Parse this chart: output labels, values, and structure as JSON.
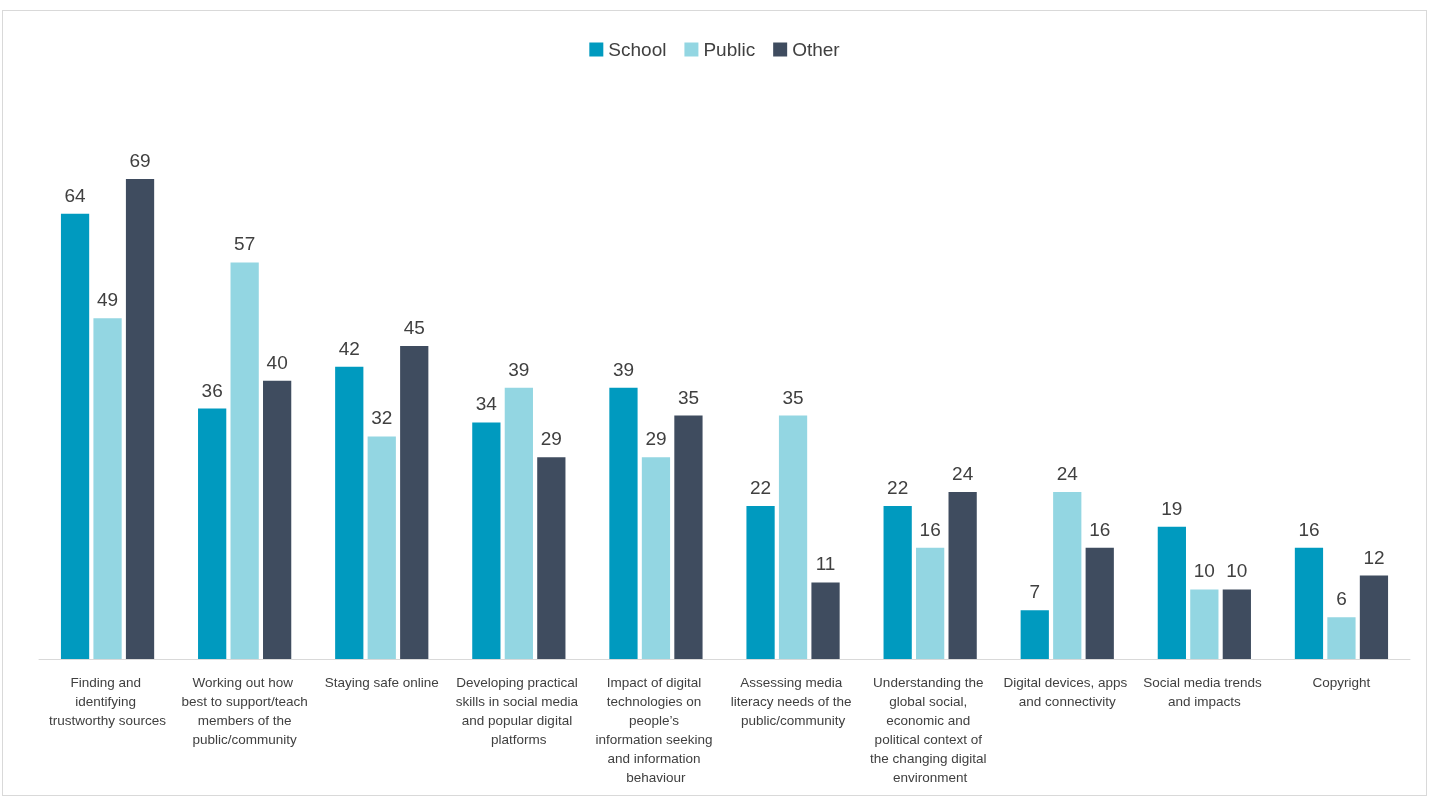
{
  "chart_data": {
    "type": "bar",
    "categories": [
      "Finding and identifying trustworthy sources",
      "Working out how best to support/teach members of the public/community",
      "Staying safe online",
      "Developing practical skills in social media and popular digital platforms",
      "Impact of digital technologies on people’s information seeking and information behaviour",
      "Assessing media literacy needs of the public/community",
      "Understanding the global social, economic and political context of the changing digital environment",
      "Digital devices, apps and connectivity",
      "Social media trends and impacts",
      "Copyright"
    ],
    "series": [
      {
        "name": "School",
        "color": "#009abf",
        "values": [
          64,
          36,
          42,
          34,
          39,
          22,
          22,
          7,
          19,
          16
        ]
      },
      {
        "name": "Public",
        "color": "#93d6e2",
        "values": [
          49,
          57,
          32,
          39,
          29,
          35,
          16,
          24,
          10,
          6
        ]
      },
      {
        "name": "Other",
        "color": "#3f4c5f",
        "values": [
          69,
          40,
          45,
          29,
          35,
          11,
          24,
          16,
          10,
          12
        ]
      }
    ],
    "data_labels": true,
    "legend": "top",
    "grid": false
  }
}
